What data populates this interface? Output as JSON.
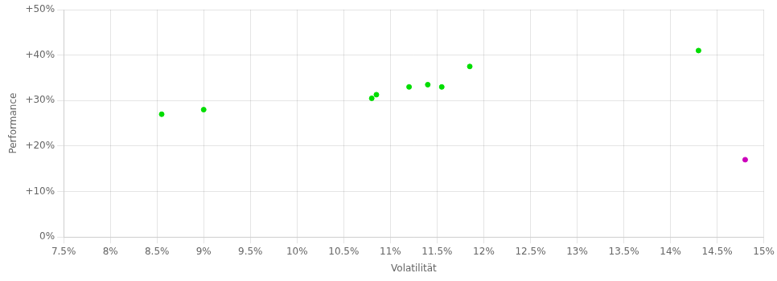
{
  "chart_data": {
    "type": "scatter",
    "xlabel": "Volatilität",
    "ylabel": "Performance",
    "series": [
      {
        "color": "#00dd00",
        "x": [
          0.0855,
          0.09,
          0.108,
          0.1085,
          0.112,
          0.114,
          0.1155,
          0.1185,
          0.143
        ],
        "values": [
          0.27,
          0.28,
          0.305,
          0.313,
          0.33,
          0.335,
          0.33,
          0.375,
          0.41
        ]
      },
      {
        "color": "#cc00bb",
        "x": [
          0.148
        ],
        "values": [
          0.17
        ]
      }
    ],
    "xlim": [
      0.075,
      0.15
    ],
    "ylim": [
      0.0,
      0.5
    ],
    "xticks": [
      {
        "value": 0.075,
        "label": "7.5%"
      },
      {
        "value": 0.08,
        "label": "8%"
      },
      {
        "value": 0.085,
        "label": "8.5%"
      },
      {
        "value": 0.09,
        "label": "9%"
      },
      {
        "value": 0.095,
        "label": "9.5%"
      },
      {
        "value": 0.1,
        "label": "10%"
      },
      {
        "value": 0.105,
        "label": "10.5%"
      },
      {
        "value": 0.11,
        "label": "11%"
      },
      {
        "value": 0.115,
        "label": "11.5%"
      },
      {
        "value": 0.12,
        "label": "12%"
      },
      {
        "value": 0.125,
        "label": "12.5%"
      },
      {
        "value": 0.13,
        "label": "13%"
      },
      {
        "value": 0.135,
        "label": "13.5%"
      },
      {
        "value": 0.14,
        "label": "14%"
      },
      {
        "value": 0.145,
        "label": "14.5%"
      },
      {
        "value": 0.15,
        "label": "15%"
      }
    ],
    "yticks": [
      {
        "value": 0.0,
        "label": "0%"
      },
      {
        "value": 0.1,
        "label": "+10%"
      },
      {
        "value": 0.2,
        "label": "+20%"
      },
      {
        "value": 0.3,
        "label": "+30%"
      },
      {
        "value": 0.4,
        "label": "+40%"
      },
      {
        "value": 0.5,
        "label": "+50%"
      }
    ],
    "grid": true
  }
}
